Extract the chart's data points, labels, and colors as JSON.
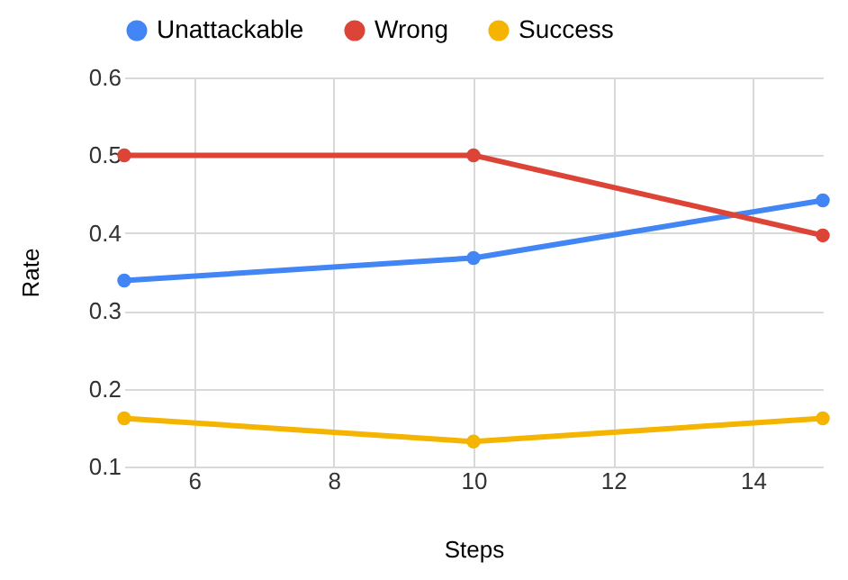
{
  "chart_data": {
    "type": "line",
    "xlabel": "Steps",
    "ylabel": "Rate",
    "x": [
      5,
      10,
      15
    ],
    "series": [
      {
        "name": "Unattackable",
        "color": "#4285f4",
        "values": [
          0.339,
          0.368,
          0.442
        ]
      },
      {
        "name": "Wrong",
        "color": "#db4437",
        "values": [
          0.5,
          0.5,
          0.397
        ]
      },
      {
        "name": "Success",
        "color": "#f4b400",
        "values": [
          0.162,
          0.132,
          0.162
        ]
      }
    ],
    "xlim": [
      5,
      15
    ],
    "xticks": [
      6,
      8,
      10,
      12,
      14
    ],
    "ylim": [
      0.1,
      0.6
    ],
    "yticks": [
      0.1,
      0.2,
      0.3,
      0.4,
      0.5,
      0.6
    ],
    "grid": true,
    "legend": "top",
    "marker": "circle",
    "line_style": "solid"
  }
}
